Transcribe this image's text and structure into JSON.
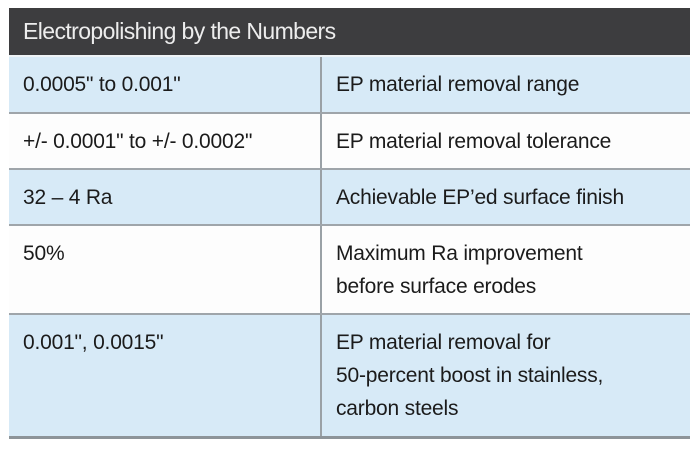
{
  "chart_data": {
    "type": "table",
    "title": "Electropolishing by the Numbers",
    "columns": [
      "value",
      "description"
    ],
    "rows": [
      {
        "value": "0.0005\" to 0.001\"",
        "description": "EP material removal range"
      },
      {
        "value": "+/- 0.0001\" to +/- 0.0002\"",
        "description": "EP material removal tolerance"
      },
      {
        "value": "32 – 4 Ra",
        "description": "Achievable EP’ed surface finish"
      },
      {
        "value": "50%",
        "description": "Maximum Ra improvement\nbefore surface erodes"
      },
      {
        "value": "0.001\", 0.0015\"",
        "description": "EP material removal for\n50-percent boost in stainless,\ncarbon steels"
      }
    ],
    "layout": {
      "header_position": "top",
      "zebra_striping": true,
      "column_divider": true
    },
    "colors": {
      "header_bg": "#3d3d3f",
      "header_text": "#ededed",
      "row_alt_bg": "#d7eaf7",
      "row_plain_bg": "#fdfdfd",
      "separator": "#9fa5aa",
      "column_divider": "#9aa1a6",
      "bottom_border": "#8d9499",
      "body_text": "#1b1b1b"
    }
  }
}
